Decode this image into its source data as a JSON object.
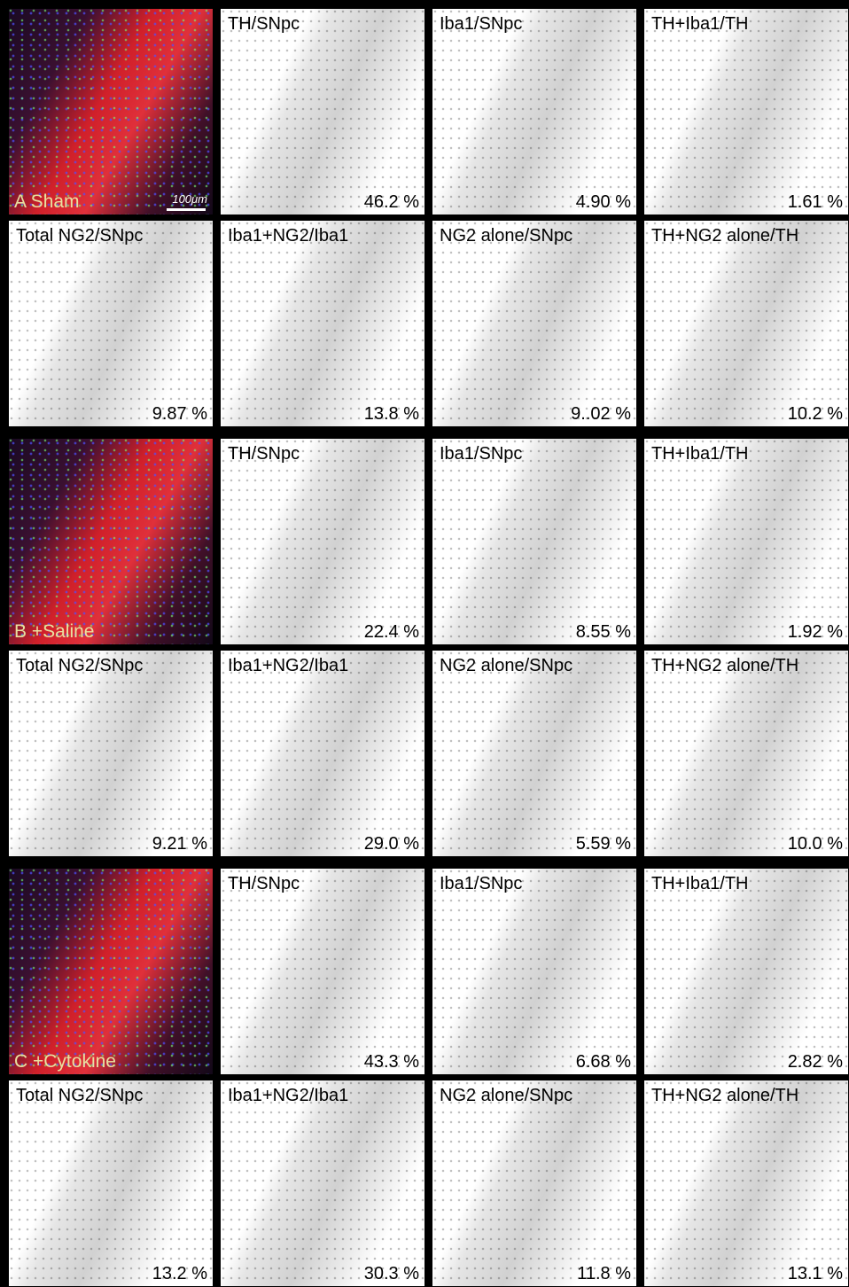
{
  "groups": [
    {
      "label": "A Sham",
      "scale_bar": "100μm",
      "top_row": [
        {
          "title": "TH/SNpc",
          "value": "46.2 %"
        },
        {
          "title": "Iba1/SNpc",
          "value": "4.90 %"
        },
        {
          "title": "TH+Iba1/TH",
          "value": "1.61 %"
        }
      ],
      "bottom_row": [
        {
          "title": "Total NG2/SNpc",
          "value": "9.87 %"
        },
        {
          "title": "Iba1+NG2/Iba1",
          "value": "13.8 %"
        },
        {
          "title": "NG2 alone/SNpc",
          "value": "9..02 %"
        },
        {
          "title": "TH+NG2 alone/TH",
          "value": "10.2 %"
        }
      ]
    },
    {
      "label": "B +Saline",
      "top_row": [
        {
          "title": "TH/SNpc",
          "value": "22.4 %"
        },
        {
          "title": "Iba1/SNpc",
          "value": "8.55 %"
        },
        {
          "title": "TH+Iba1/TH",
          "value": "1.92 %"
        }
      ],
      "bottom_row": [
        {
          "title": "Total NG2/SNpc",
          "value": "9.21 %"
        },
        {
          "title": "Iba1+NG2/Iba1",
          "value": "29.0 %"
        },
        {
          "title": "NG2 alone/SNpc",
          "value": "5.59 %"
        },
        {
          "title": "TH+NG2 alone/TH",
          "value": "10.0 %"
        }
      ]
    },
    {
      "label": "C +Cytokine",
      "top_row": [
        {
          "title": "TH/SNpc",
          "value": "43.3 %"
        },
        {
          "title": "Iba1/SNpc",
          "value": "6.68 %"
        },
        {
          "title": "TH+Iba1/TH",
          "value": "2.82 %"
        }
      ],
      "bottom_row": [
        {
          "title": "Total NG2/SNpc",
          "value": "13.2 %"
        },
        {
          "title": "Iba1+NG2/Iba1",
          "value": "30.3 %"
        },
        {
          "title": "NG2 alone/SNpc",
          "value": "11.8 %"
        },
        {
          "title": "TH+NG2 alone/TH",
          "value": "13.1 %"
        }
      ]
    }
  ]
}
